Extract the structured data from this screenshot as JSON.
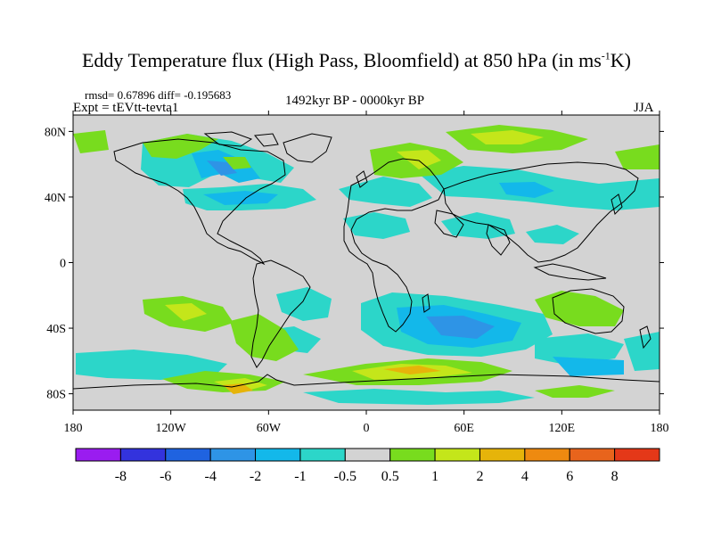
{
  "title_pre": "Eddy Temperature flux (High Pass, Bloomfield) at 850 hPa (in ms",
  "title_sup": "-1",
  "title_post": "K)",
  "stats": "rmsd= 0.67896 diff= -0.195683",
  "experiment": "Expt = tEVtt-tevta1",
  "period": "1492kyr BP - 0000kyr BP",
  "season": "JJA",
  "map": {
    "lon_range": [
      -180,
      180
    ],
    "lat_range": [
      -90,
      90
    ],
    "lat_ticks": [
      {
        "value": 80,
        "label": "80N"
      },
      {
        "value": 40,
        "label": "40N"
      },
      {
        "value": 0,
        "label": "0"
      },
      {
        "value": -40,
        "label": "40S"
      },
      {
        "value": -80,
        "label": "80S"
      }
    ],
    "lon_ticks": [
      {
        "value": -180,
        "label": "180"
      },
      {
        "value": -120,
        "label": "120W"
      },
      {
        "value": -60,
        "label": "60W"
      },
      {
        "value": 0,
        "label": "0"
      },
      {
        "value": 60,
        "label": "60E"
      },
      {
        "value": 120,
        "label": "120E"
      },
      {
        "value": 180,
        "label": "180"
      }
    ],
    "background_color": "#d3d3d3"
  },
  "colorbar": {
    "levels": [
      "-8",
      "-6",
      "-4",
      "-2",
      "-1",
      "-0.5",
      "0.5",
      "1",
      "2",
      "4",
      "6",
      "8"
    ],
    "colors": [
      "#9a1cf0",
      "#3333dd",
      "#1f63e0",
      "#2e94e6",
      "#13b8ea",
      "#2cd6c9",
      "#d3d3d3",
      "#78dc1e",
      "#c4e61a",
      "#e6b40a",
      "#ee8a10",
      "#e8641c",
      "#e43818"
    ]
  }
}
